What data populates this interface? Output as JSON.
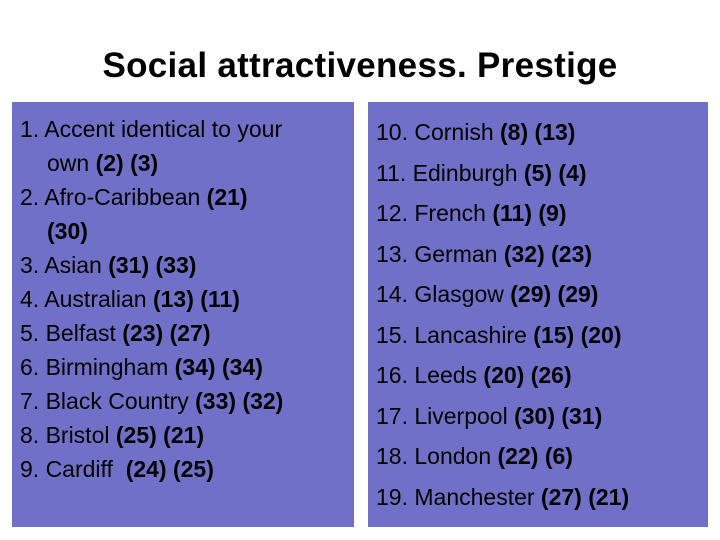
{
  "title": "Social attractiveness. Prestige",
  "left_list": [
    {
      "label": "1. Accent identical to your",
      "label2": "own",
      "a": "(2)",
      "b": "(3)"
    },
    {
      "label": "2. Afro-Caribbean",
      "a": "(21)",
      "b": "(30)"
    },
    {
      "label": "3. Asian",
      "a": "(31)",
      "b": "(33)"
    },
    {
      "label": "4. Australian",
      "a": "(13)",
      "b": "(11)"
    },
    {
      "label": "5. Belfast",
      "a": "(23)",
      "b": "(27)"
    },
    {
      "label": "6. Birmingham",
      "a": "(34)",
      "b": "(34)"
    },
    {
      "label": "7. Black Country",
      "a": "(33)",
      "b": "(32)"
    },
    {
      "label": "8. Bristol",
      "a": "(25)",
      "b": "(21)"
    },
    {
      "label": "9. Cardiff ",
      "a": "(24)",
      "b": "(25)"
    }
  ],
  "right_list": [
    {
      "label": "10. Cornish",
      "a": "(8)",
      "b": "(13)"
    },
    {
      "label": "11. Edinburgh",
      "a": "(5)",
      "b": "(4)"
    },
    {
      "label": "12. French",
      "a": "(11)",
      "b": "(9)"
    },
    {
      "label": "13. German",
      "a": "(32)",
      "b": "(23)"
    },
    {
      "label": "14. Glasgow",
      "a": "(29)",
      "b": "(29)"
    },
    {
      "label": "15. Lancashire",
      "a": "(15)",
      "b": "(20)"
    },
    {
      "label": "16. Leeds",
      "a": "(20)",
      "b": "(26)"
    },
    {
      "label": "17. Liverpool",
      "a": "(30)",
      "b": "(31)"
    },
    {
      "label": "18. London",
      "a": "(22)",
      "b": "(6)"
    },
    {
      "label": "19. Manchester",
      "a": "(27)",
      "b": "(21)"
    }
  ]
}
